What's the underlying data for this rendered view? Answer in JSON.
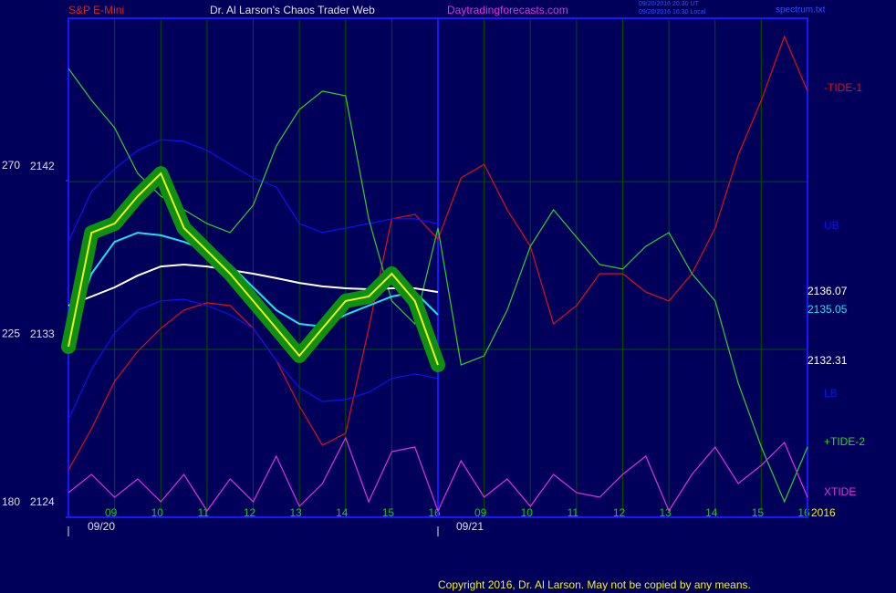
{
  "chart_data": {
    "type": "line",
    "header": {
      "symbol": "S&P E-Mini",
      "title": "Dr. Al Larson's Chaos Trader Web",
      "site": "Daytradingforecasts.com",
      "stamp_ut": "09/20/2016 20:30 UT",
      "stamp_local": "09/20/2016 16:30 Local",
      "file": "spectrum.txt"
    },
    "dates": [
      "09/20",
      "09/21"
    ],
    "year": "2016",
    "copyright": "Copyright 2016, Dr. Al Larson. May not be copied by any means.",
    "xlim": [
      -1,
      15
    ],
    "xticks": [
      {
        "value": 0,
        "label": "09"
      },
      {
        "value": 1,
        "label": "10"
      },
      {
        "value": 2,
        "label": "11"
      },
      {
        "value": 3,
        "label": "12"
      },
      {
        "value": 4,
        "label": "13"
      },
      {
        "value": 5,
        "label": "14"
      },
      {
        "value": 6,
        "label": "15"
      },
      {
        "value": 7,
        "label": "16"
      },
      {
        "value": 8,
        "label": "09"
      },
      {
        "value": 9,
        "label": "10"
      },
      {
        "value": 10,
        "label": "11"
      },
      {
        "value": 11,
        "label": "12"
      },
      {
        "value": 12,
        "label": "13"
      },
      {
        "value": 13,
        "label": "14"
      },
      {
        "value": 14,
        "label": "15"
      },
      {
        "value": 15,
        "label": "16"
      }
    ],
    "ylim": [
      2124,
      2150.76
    ],
    "yticks": [
      2124,
      2133,
      2142
    ],
    "y2lim": [
      180,
      313.4
    ],
    "y2ticks": [
      180,
      225,
      270
    ],
    "grid": true,
    "x": [
      -1,
      -0.5,
      0,
      0.5,
      1,
      1.5,
      2,
      2.5,
      3,
      3.5,
      4,
      4.5,
      5,
      5.5,
      6,
      6.5,
      7,
      7.5,
      8,
      8.5,
      9,
      9.5,
      10,
      10.5,
      11,
      11.5,
      12,
      12.5,
      13,
      13.5,
      14,
      14.5,
      15
    ],
    "series": [
      {
        "name": "-TIDE-1",
        "color": "#e01010",
        "values": [
          2126.54,
          2128.75,
          2131.29,
          2132.9,
          2134.13,
          2135.11,
          2135.5,
          2135.35,
          2134.13,
          2132.42,
          2129.97,
          2127.86,
          2128.51,
          2134.13,
          2140.0,
          2140.24,
          2138.92,
          2142.2,
          2142.93,
          2140.49,
          2138.53,
          2134.37,
          2135.35,
          2137.06,
          2137.06,
          2136.08,
          2135.6,
          2137.06,
          2139.51,
          2143.42,
          2146.36,
          2149.78,
          2146.85
        ]
      },
      {
        "name": "UB",
        "color": "#1010f0",
        "values": [
          2138.77,
          2141.47,
          2142.69,
          2143.67,
          2144.25,
          2144.16,
          2143.67,
          2142.93,
          2142.2,
          2141.71,
          2139.75,
          2139.27,
          2139.51,
          2139.75,
          2140.0,
          2140.0,
          2139.75,
          null,
          null,
          null,
          null,
          null,
          null,
          null,
          null,
          null,
          null,
          null,
          null,
          null,
          null,
          null,
          null
        ]
      },
      {
        "name": "LB",
        "color": "#1010f0",
        "values": [
          2129.23,
          2131.93,
          2133.88,
          2135.11,
          2135.6,
          2135.69,
          2135.35,
          2134.86,
          2134.13,
          2132.42,
          2130.95,
          2130.21,
          2130.31,
          2130.7,
          2131.44,
          2131.69,
          2131.44,
          null,
          null,
          null,
          null,
          null,
          null,
          null,
          null,
          null,
          null,
          null,
          null,
          null,
          null,
          null,
          null
        ]
      },
      {
        "name": "+TIDE-2",
        "color": "#30d030",
        "values": [
          2148.07,
          2146.36,
          2144.89,
          2142.44,
          2141.22,
          2140.49,
          2139.75,
          2139.27,
          2140.73,
          2143.91,
          2145.87,
          2146.85,
          2146.6,
          2140.0,
          2135.6,
          2134.37,
          2139.51,
          2132.17,
          2132.66,
          2135.11,
          2138.53,
          2140.49,
          2139.02,
          2137.55,
          2137.31,
          2138.53,
          2139.27,
          2137.06,
          2135.6,
          2131.19,
          2127.77,
          2124.83,
          2127.77
        ]
      },
      {
        "name": "XTIDE",
        "color": "#e030e0",
        "axis": "y2",
        "values": [
          186.59,
          191.46,
          185.37,
          190.24,
          184.15,
          191.46,
          181.71,
          190.24,
          184.15,
          196.34,
          182.93,
          189.02,
          201.22,
          184.15,
          197.56,
          198.78,
          181.71,
          195.12,
          185.37,
          190.24,
          182.93,
          191.46,
          186.59,
          185.37,
          191.46,
          196.34,
          181.71,
          191.46,
          198.78,
          189.02,
          193.9,
          200.0,
          185.37
        ]
      },
      {
        "color": "#ffffff",
        "values": [
          2135.35,
          2135.84,
          2136.33,
          2136.96,
          2137.45,
          2137.55,
          2137.45,
          2137.26,
          2137.06,
          2136.82,
          2136.57,
          2136.38,
          2136.28,
          2136.23,
          2136.28,
          2136.28,
          2136.08,
          null,
          null,
          null,
          null,
          null,
          null,
          null,
          null,
          null,
          null,
          null,
          null,
          null,
          null,
          null,
          null
        ]
      },
      {
        "color": "#20e0f0",
        "values": [
          2133.64,
          2137.06,
          2138.77,
          2139.26,
          2139.12,
          2138.77,
          2138.29,
          2137.55,
          2136.33,
          2135.11,
          2134.37,
          2134.23,
          2134.86,
          2135.35,
          2135.84,
          2136.08,
          2134.86,
          null,
          null,
          null,
          null,
          null,
          null,
          null,
          null,
          null,
          null,
          null,
          null,
          null,
          null,
          null,
          null
        ]
      },
      {
        "color": "#f0f020",
        "values": [
          2133.15,
          2139.26,
          2139.75,
          2141.22,
          2142.44,
          2139.51,
          2138.29,
          2137.06,
          2135.6,
          2134.13,
          2132.66,
          2134.13,
          2135.6,
          2135.84,
          2137.06,
          2135.6,
          2132.17,
          null,
          null,
          null,
          null,
          null,
          null,
          null,
          null,
          null,
          null,
          null,
          null,
          null,
          null,
          null,
          null
        ]
      }
    ],
    "annotations": [
      {
        "text": "2136.07",
        "color": "#ffffff"
      },
      {
        "text": "2135.05",
        "color": "#20e0f0"
      },
      {
        "text": "2132.31",
        "color": "#ffffff"
      }
    ]
  }
}
